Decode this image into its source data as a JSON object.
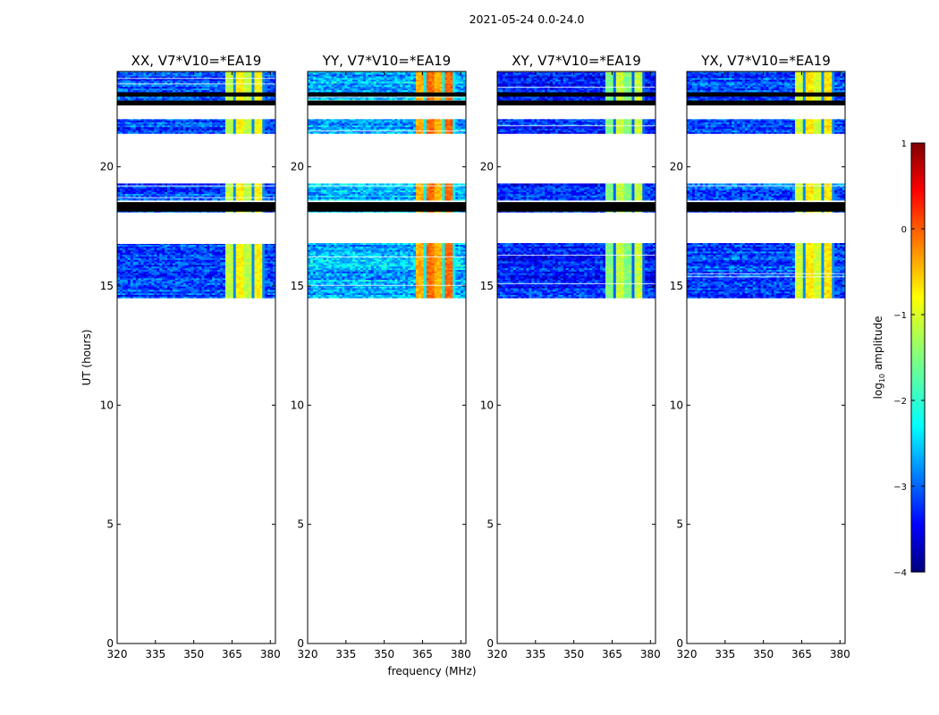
{
  "figure": {
    "suptitle": "2021-05-24 0.0-24.0",
    "xlabel": "frequency (MHz)",
    "ylabel": "UT (hours)",
    "colorbar_label": "log",
    "colorbar_label_sub": "10",
    "colorbar_label_rest": " amplitude"
  },
  "chart_data": {
    "type": "heatmap",
    "x_axis": {
      "range": [
        320,
        382
      ],
      "ticks": [
        320,
        335,
        350,
        365,
        380
      ],
      "tick_labels": [
        "320",
        "335",
        "350",
        "365",
        "380"
      ]
    },
    "y_axis": {
      "range": [
        0,
        24
      ],
      "ticks": [
        0,
        5,
        10,
        15,
        20
      ],
      "tick_labels": [
        "0",
        "5",
        "10",
        "15",
        "20"
      ]
    },
    "colorbar": {
      "range": [
        -4,
        1
      ],
      "ticks": [
        -4,
        -3,
        -2,
        -1,
        0,
        1
      ],
      "tick_labels": [
        "−4",
        "−3",
        "−2",
        "−1",
        "0",
        "1"
      ],
      "colormap": "jet"
    },
    "data_time_ranges_hours": [
      [
        14.5,
        16.8
      ],
      [
        18.1,
        18.5
      ],
      [
        18.6,
        19.3
      ],
      [
        21.4,
        22.0
      ],
      [
        22.6,
        23.6
      ],
      [
        23.6,
        24.0
      ]
    ],
    "flagged_black_bands_hours": [
      [
        18.12,
        18.52
      ],
      [
        22.58,
        22.78
      ],
      [
        22.95,
        23.12
      ]
    ],
    "rfi_band_mhz": [
      362,
      377
    ],
    "panels": [
      {
        "title": "XX, V7*V10=*EA19",
        "base_level": -3.0,
        "rfi_level": -1.1
      },
      {
        "title": "YY, V7*V10=*EA19",
        "base_level": -2.5,
        "rfi_level": -0.4
      },
      {
        "title": "XY, V7*V10=*EA19",
        "base_level": -3.2,
        "rfi_level": -1.4
      },
      {
        "title": "YX, V7*V10=*EA19",
        "base_level": -3.0,
        "rfi_level": -1.0
      }
    ]
  }
}
